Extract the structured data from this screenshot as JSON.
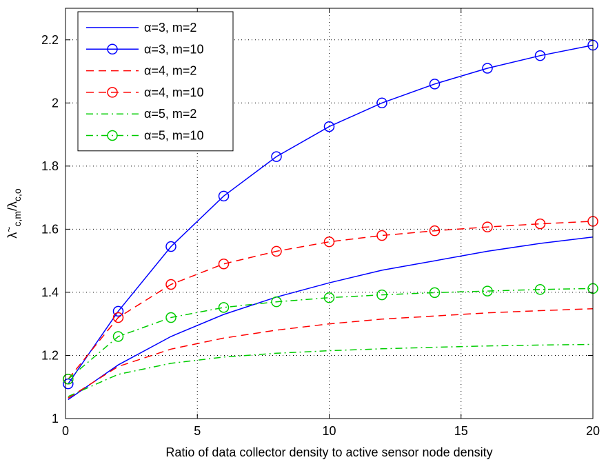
{
  "chart_data": {
    "type": "line",
    "title": "",
    "xlabel": "Ratio of data collector density to active sensor node density",
    "ylabel_main": "λ",
    "ylabel_tilde": "~",
    "ylabel_sub1": "c,m",
    "ylabel_mid": "/λ",
    "ylabel_sub2": "c,o",
    "xlim": [
      0,
      20
    ],
    "ylim": [
      1,
      2.3
    ],
    "xticks": [
      0,
      5,
      10,
      15,
      20
    ],
    "xtick_labels": [
      "0",
      "5",
      "10",
      "15",
      "20"
    ],
    "yticks": [
      1,
      1.2,
      1.4,
      1.6,
      1.8,
      2,
      2.2
    ],
    "ytick_labels": [
      "1",
      "1.2",
      "1.4",
      "1.6",
      "1.8",
      "2",
      "2.2"
    ],
    "grid": true,
    "legend_position": "top-left",
    "series": [
      {
        "name": "α=3, m=2",
        "color": "#0000ff",
        "dash": "solid",
        "marker": "none",
        "x": [
          0.1,
          2,
          4,
          6,
          8,
          10,
          12,
          14,
          16,
          18,
          20
        ],
        "y": [
          1.06,
          1.17,
          1.26,
          1.33,
          1.385,
          1.43,
          1.47,
          1.5,
          1.53,
          1.555,
          1.575
        ]
      },
      {
        "name": "α=3, m=10",
        "color": "#0000ff",
        "dash": "solid",
        "marker": "circle",
        "x": [
          0.1,
          2,
          4,
          6,
          8,
          10,
          12,
          14,
          16,
          18,
          20
        ],
        "y": [
          1.11,
          1.34,
          1.545,
          1.705,
          1.83,
          1.925,
          2.0,
          2.06,
          2.11,
          2.15,
          2.183
        ]
      },
      {
        "name": "α=4, m=2",
        "color": "#ff0000",
        "dash": "dashed",
        "marker": "none",
        "x": [
          0.1,
          2,
          4,
          6,
          8,
          10,
          12,
          14,
          16,
          18,
          20
        ],
        "y": [
          1.065,
          1.165,
          1.22,
          1.255,
          1.28,
          1.3,
          1.315,
          1.325,
          1.335,
          1.342,
          1.348
        ]
      },
      {
        "name": "α=4, m=10",
        "color": "#ff0000",
        "dash": "dashed",
        "marker": "circle",
        "x": [
          0.1,
          2,
          4,
          6,
          8,
          10,
          12,
          14,
          16,
          18,
          20
        ],
        "y": [
          1.125,
          1.32,
          1.425,
          1.49,
          1.53,
          1.56,
          1.58,
          1.595,
          1.607,
          1.617,
          1.625
        ]
      },
      {
        "name": "α=5, m=2",
        "color": "#00cc00",
        "dash": "dashdot",
        "marker": "none",
        "x": [
          0.1,
          2,
          4,
          6,
          8,
          10,
          12,
          14,
          16,
          18,
          20
        ],
        "y": [
          1.07,
          1.14,
          1.175,
          1.195,
          1.207,
          1.215,
          1.221,
          1.226,
          1.23,
          1.233,
          1.235
        ]
      },
      {
        "name": "α=5, m=10",
        "color": "#00cc00",
        "dash": "dashdot",
        "marker": "circle",
        "x": [
          0.1,
          2,
          4,
          6,
          8,
          10,
          12,
          14,
          16,
          18,
          20
        ],
        "y": [
          1.125,
          1.26,
          1.32,
          1.352,
          1.37,
          1.383,
          1.392,
          1.399,
          1.404,
          1.409,
          1.412
        ]
      }
    ]
  }
}
